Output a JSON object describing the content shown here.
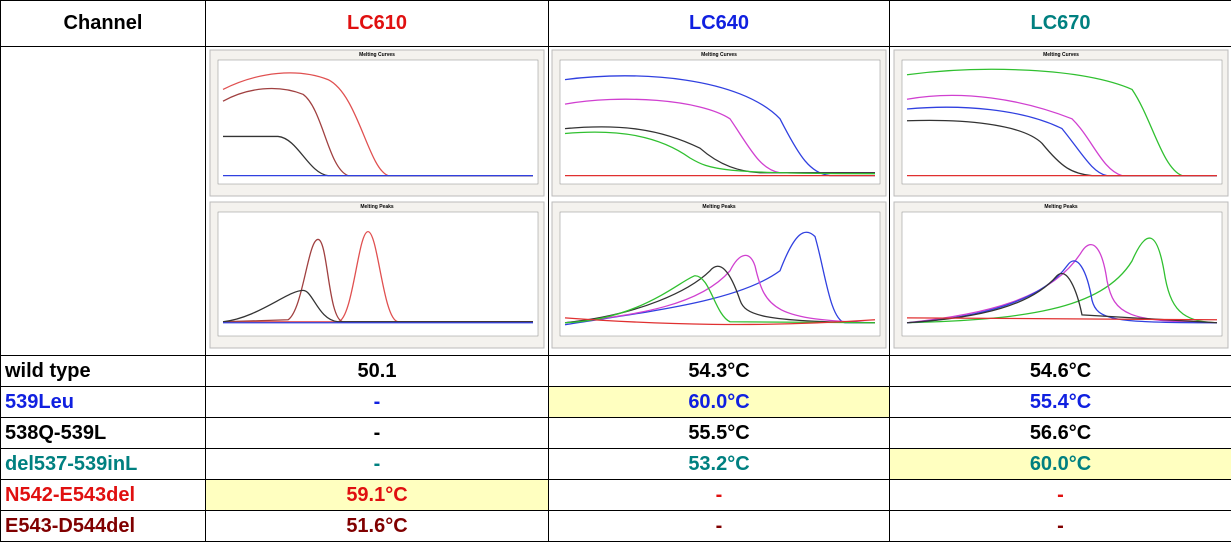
{
  "header": [
    "Channel",
    "LC610",
    "LC640",
    "LC670"
  ],
  "panel_titles": {
    "curves": "Melting Curves",
    "peaks": "Melting Peaks"
  },
  "rows": [
    {
      "label": "wild type",
      "cells": [
        "50.1",
        "54.3°C",
        "54.6°C"
      ]
    },
    {
      "label": "539Leu",
      "cells": [
        "-",
        "60.0°C",
        "55.4°C"
      ]
    },
    {
      "label": "538Q-539L",
      "cells": [
        "-",
        "55.5°C",
        "56.6°C"
      ]
    },
    {
      "label": "del537-539inL",
      "cells": [
        "-",
        "53.2°C",
        "60.0°C"
      ]
    },
    {
      "label": "N542-E543del",
      "cells": [
        "59.1°C",
        "-",
        "-"
      ]
    },
    {
      "label": "E543-D544del",
      "cells": [
        "51.6°C",
        "-",
        "-"
      ]
    }
  ]
}
